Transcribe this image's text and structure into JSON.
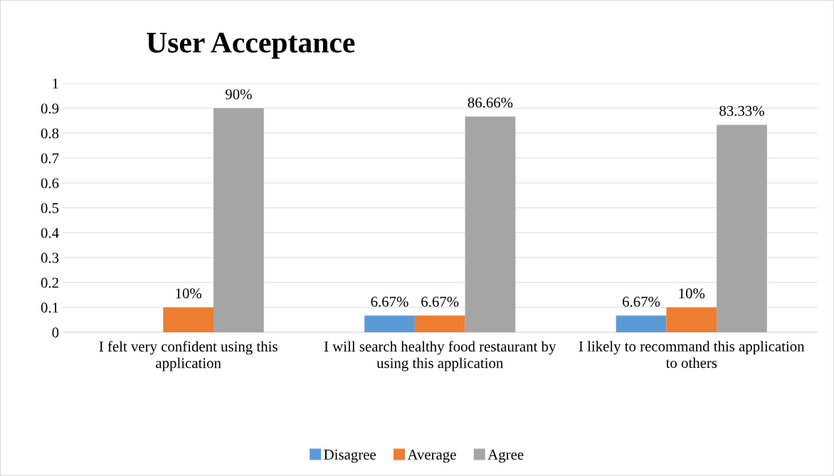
{
  "chart_data": {
    "type": "bar",
    "title": "User Acceptance",
    "categories": [
      "I felt very confident using this application",
      "I will search healthy food restaurant by using this application",
      "I likely to recommand this application to others"
    ],
    "series": [
      {
        "name": "Disagree",
        "color": "#5b9bd5",
        "values": [
          0,
          0.0667,
          0.0667
        ],
        "value_labels": [
          null,
          "6.67%",
          "6.67%"
        ]
      },
      {
        "name": "Average",
        "color": "#ed7d31",
        "values": [
          0.1,
          0.0667,
          0.1
        ],
        "value_labels": [
          "10%",
          "6.67%",
          "10%"
        ]
      },
      {
        "name": "Agree",
        "color": "#a5a5a5",
        "values": [
          0.9,
          0.8666,
          0.8333
        ],
        "value_labels": [
          "90%",
          "86.66%",
          "83.33%"
        ]
      }
    ],
    "ylim": [
      0,
      1
    ],
    "yticks": [
      0,
      0.1,
      0.2,
      0.3,
      0.4,
      0.5,
      0.6,
      0.7,
      0.8,
      0.9,
      1
    ],
    "grid": "y",
    "legend": "bottom"
  }
}
